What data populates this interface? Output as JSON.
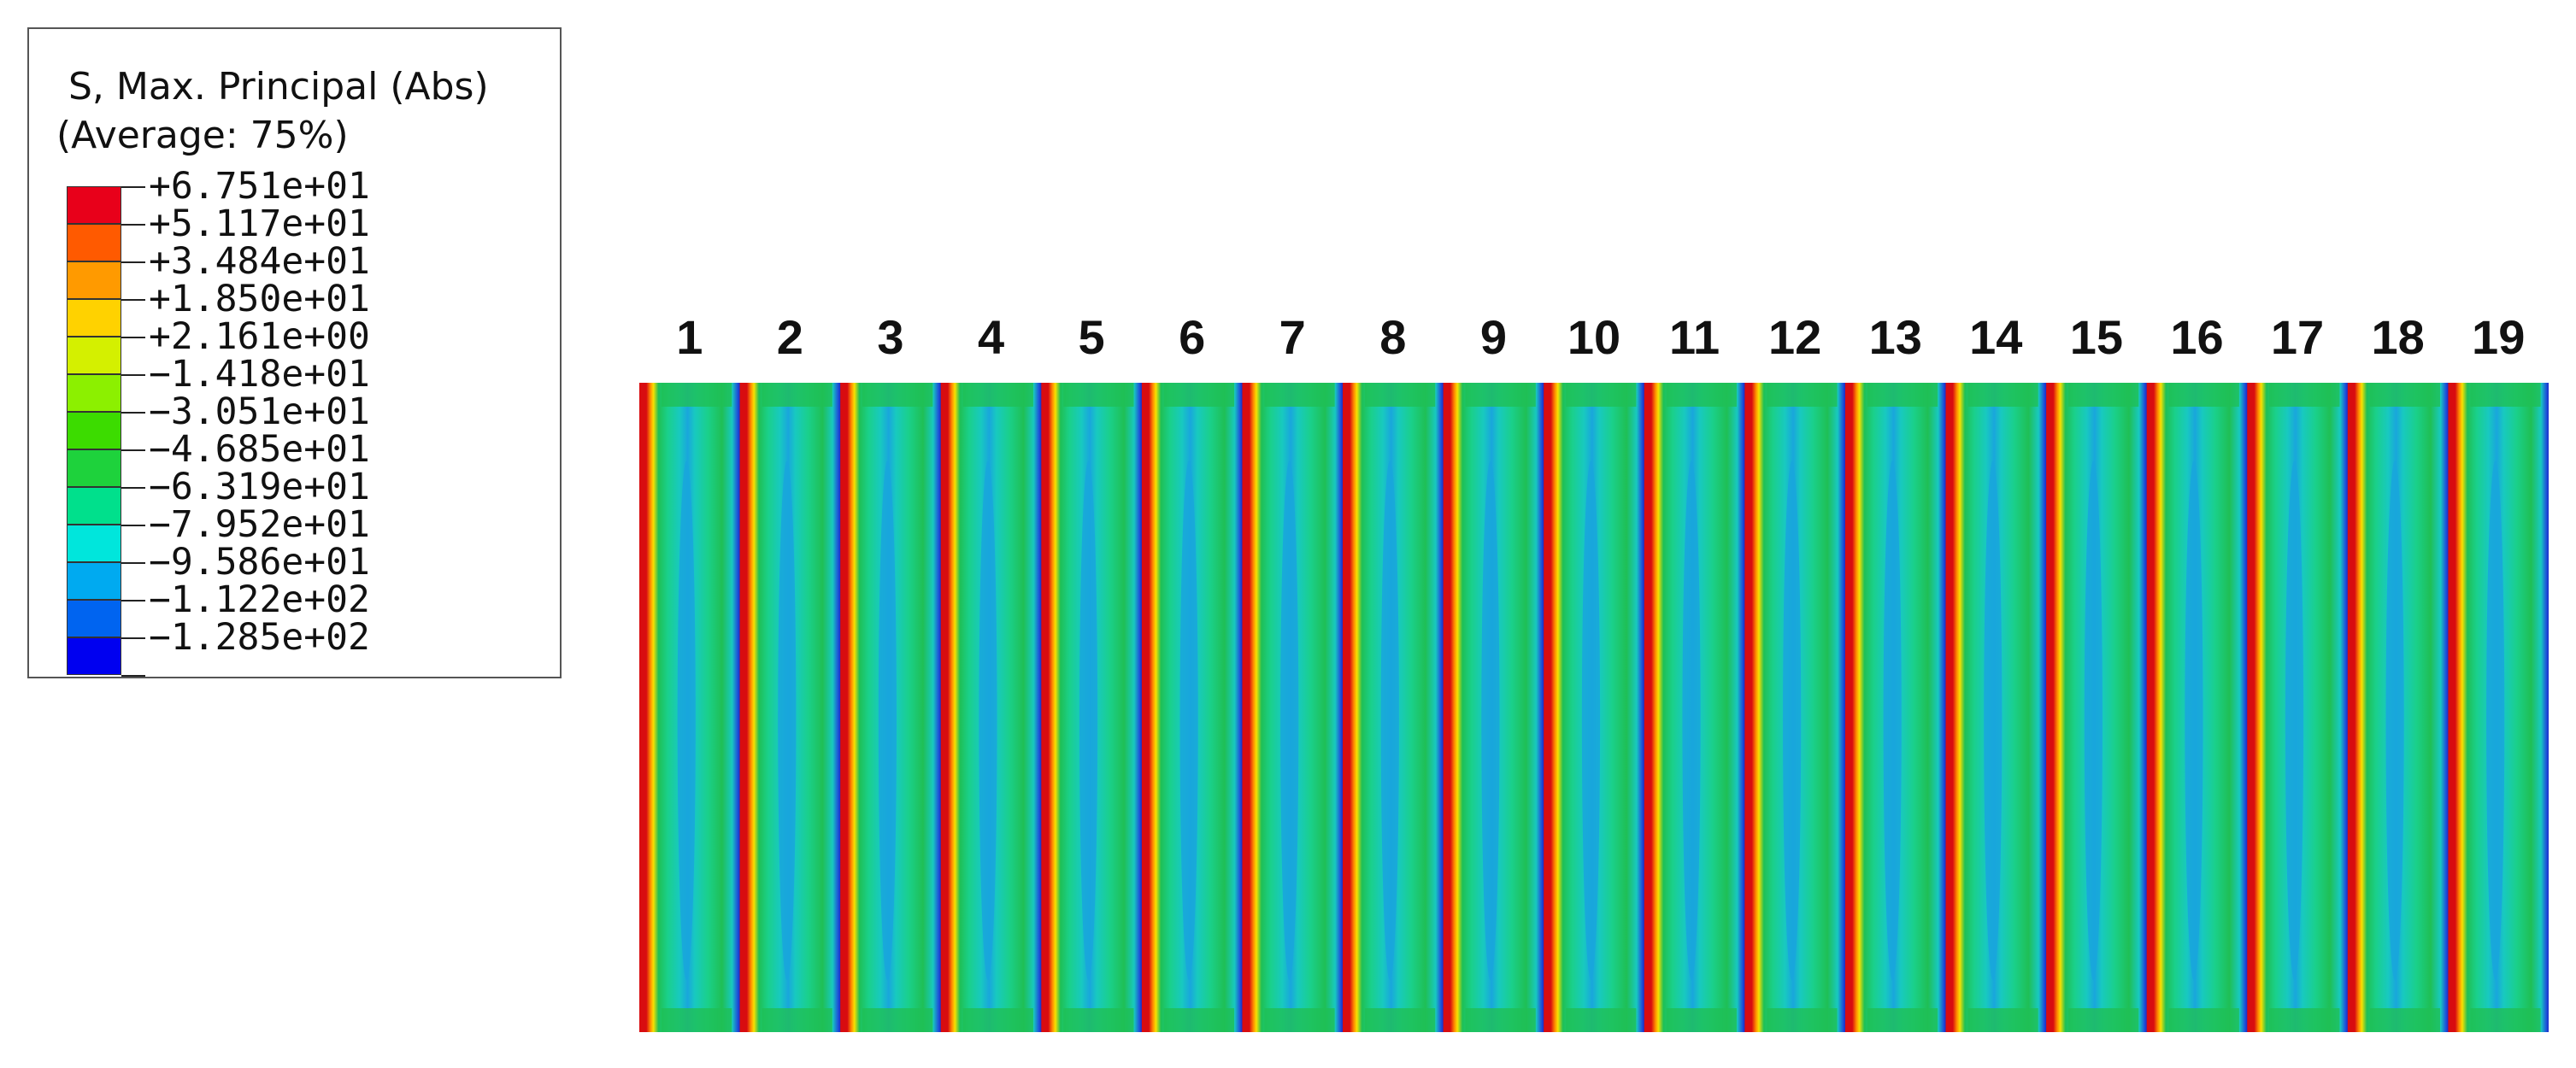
{
  "legend": {
    "title": "S, Max. Principal (Abs)",
    "subtitle": "(Average: 75%)",
    "levels": [
      {
        "label": "+6.751e+01",
        "color": "#e8001a"
      },
      {
        "label": "+5.117e+01",
        "color": "#ff5a00"
      },
      {
        "label": "+3.484e+01",
        "color": "#ff9a00"
      },
      {
        "label": "+1.850e+01",
        "color": "#ffd200"
      },
      {
        "label": "+2.161e+00",
        "color": "#d4f000"
      },
      {
        "label": "−1.418e+01",
        "color": "#8cf000"
      },
      {
        "label": "−3.051e+01",
        "color": "#3cdc00"
      },
      {
        "label": "−4.685e+01",
        "color": "#1ed23c"
      },
      {
        "label": "−6.319e+01",
        "color": "#00e08c"
      },
      {
        "label": "−7.952e+01",
        "color": "#00e6dc"
      },
      {
        "label": "−9.586e+01",
        "color": "#00aaf0"
      },
      {
        "label": "−1.122e+02",
        "color": "#0064f0"
      },
      {
        "label": "−1.285e+02",
        "color": "#0000f0"
      }
    ]
  },
  "strips": [
    "1",
    "2",
    "3",
    "4",
    "5",
    "6",
    "7",
    "8",
    "9",
    "10",
    "11",
    "12",
    "13",
    "14",
    "15",
    "16",
    "17",
    "18",
    "19"
  ],
  "colors": {
    "red": "#d80c10",
    "orange": "#ff8a00",
    "yellow": "#f8e000",
    "green": "#1fbf55",
    "mint": "#1ad08a",
    "cyan": "#18c9c0",
    "lightblue": "#19a6dc",
    "blue": "#1e5ad8",
    "darkblue": "#1b24c8"
  }
}
